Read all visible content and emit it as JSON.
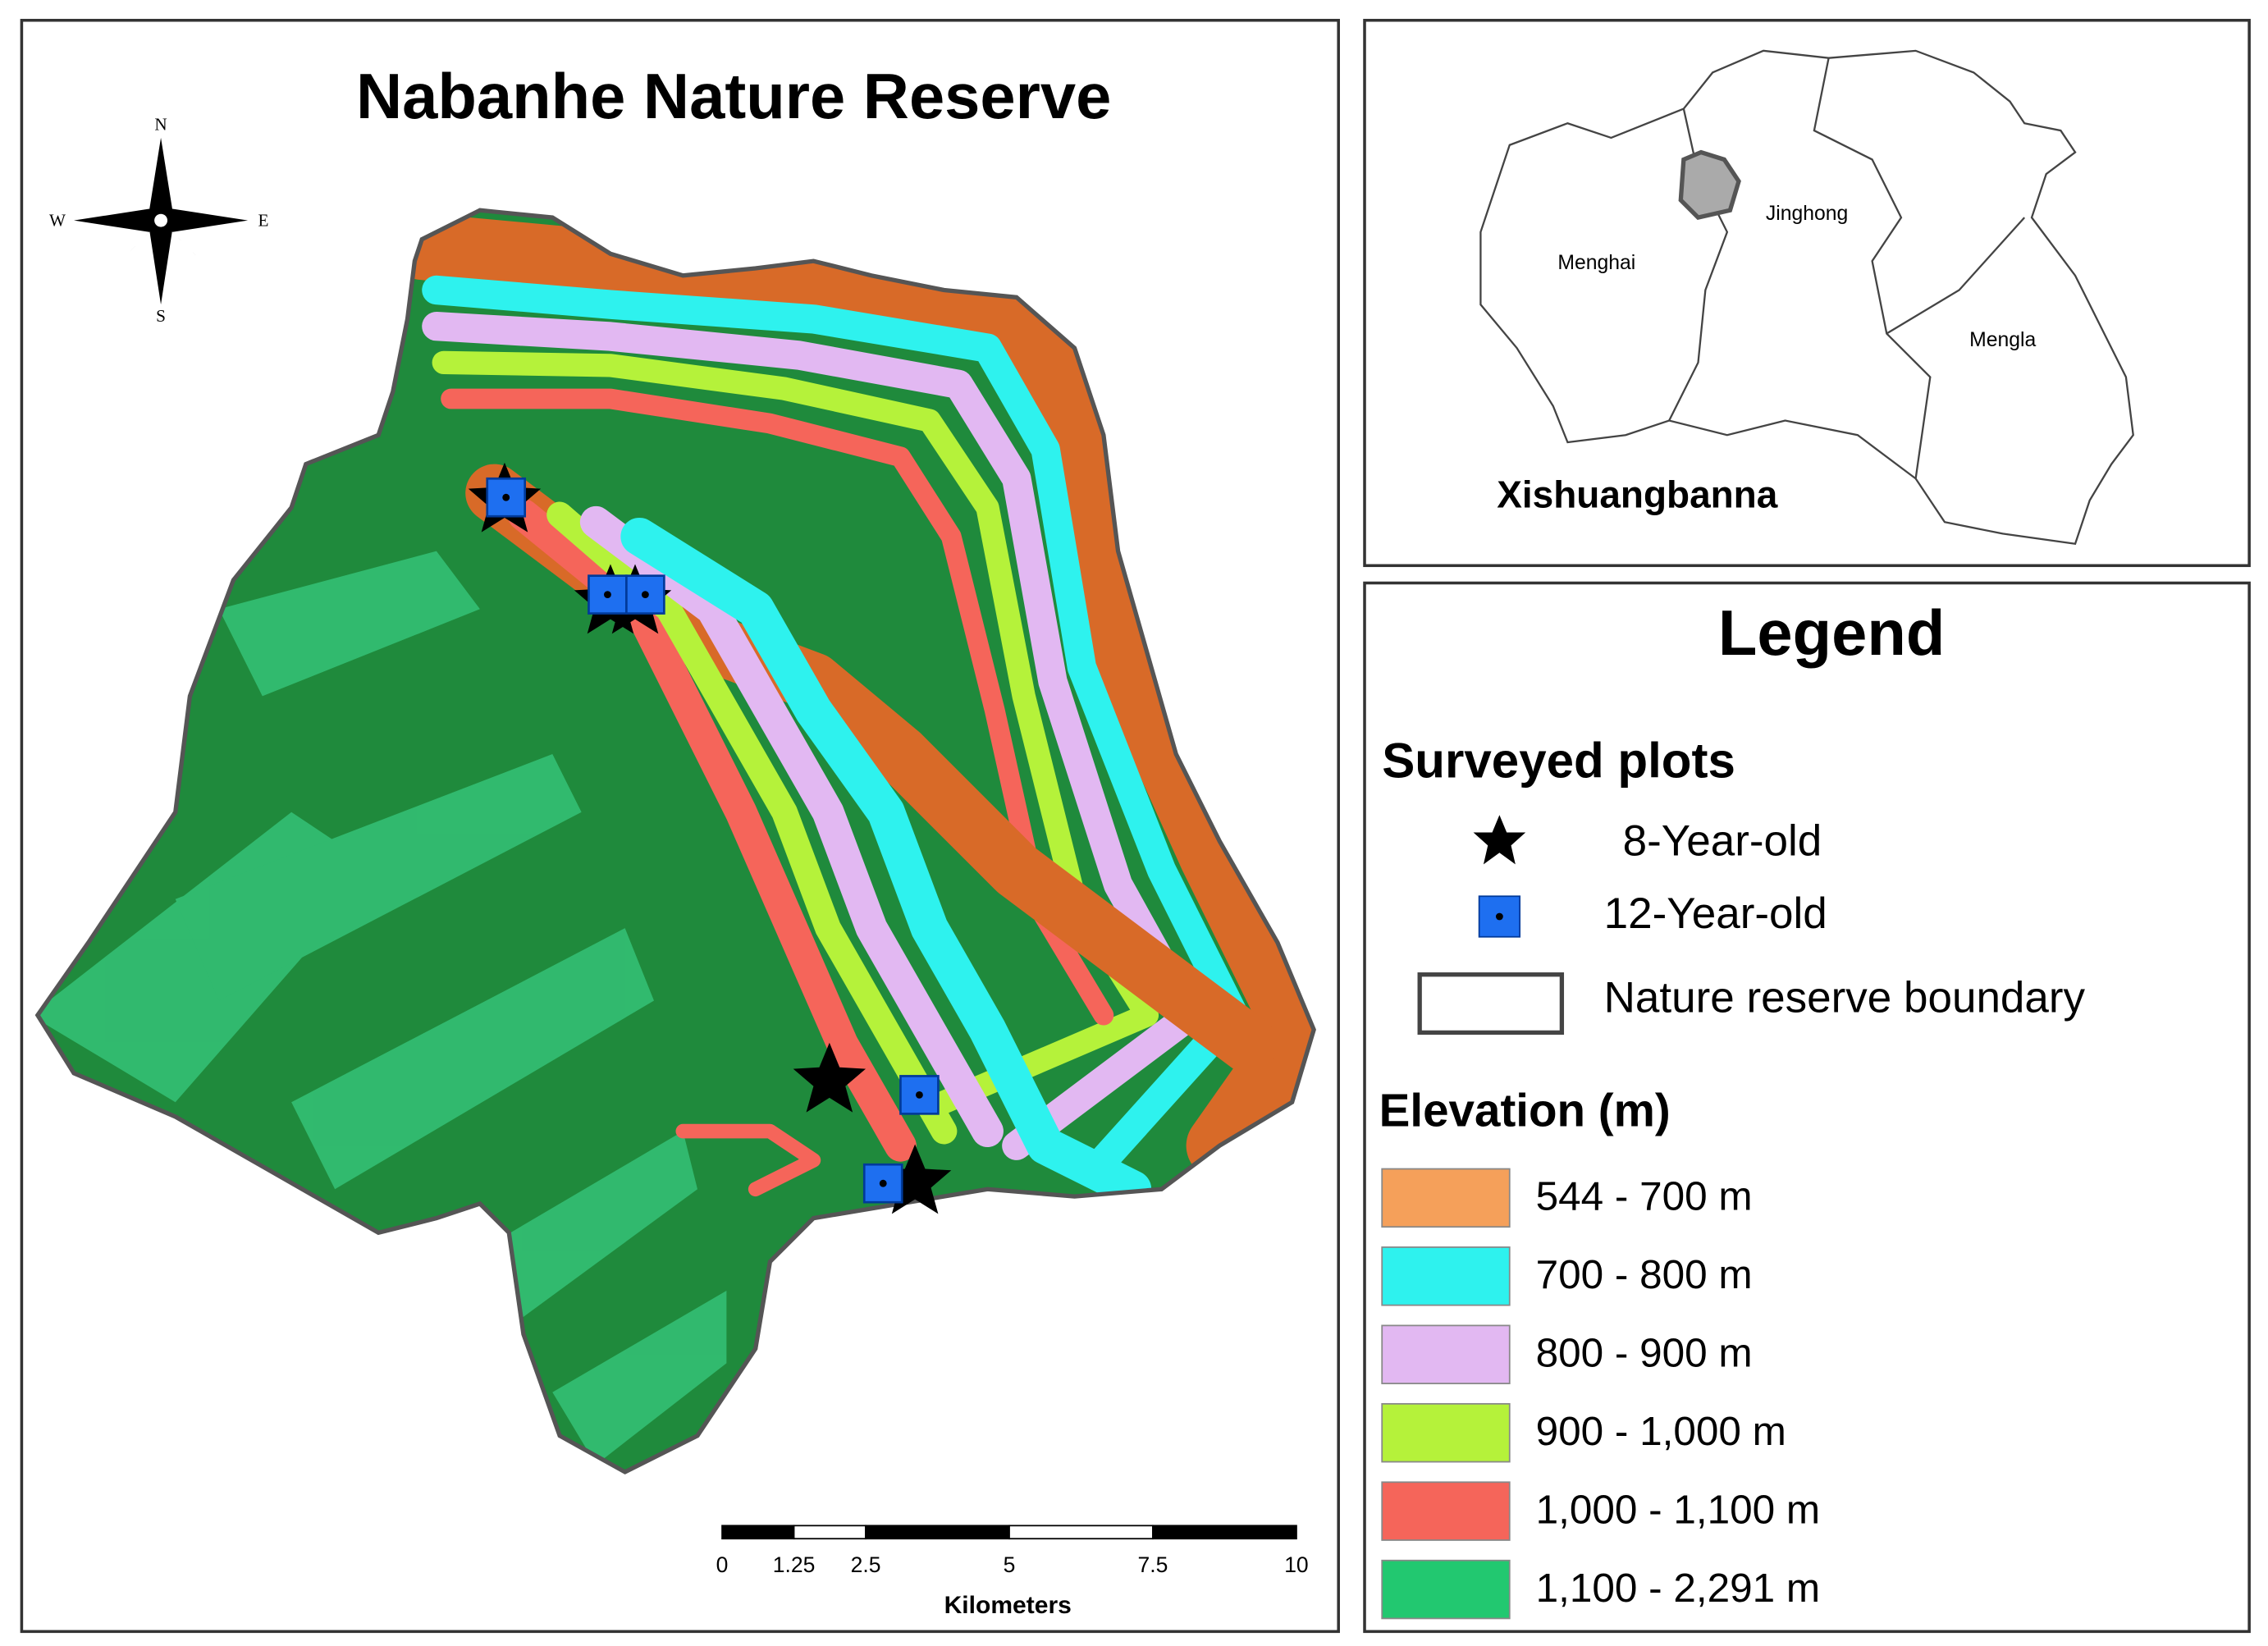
{
  "title": "Nabanhe Nature Reserve",
  "compass": {
    "north": "N",
    "south": "S",
    "east": "E",
    "west": "W"
  },
  "inset": {
    "region": "Xishuangbanna",
    "counties": [
      "Menghai",
      "Jinghong",
      "Mengla"
    ]
  },
  "legend": {
    "title": "Legend",
    "plots_title": "Surveyed plots",
    "plots": [
      "8-Year-old",
      "12-Year-old"
    ],
    "boundary": "Nature reserve boundary",
    "elevation_title": "Elevation (m)",
    "elevation_classes": [
      {
        "label": "544 - 700 m",
        "color": "#f5a05a"
      },
      {
        "label": "700 - 800 m",
        "color": "#2ef2ee"
      },
      {
        "label": "800 - 900 m",
        "color": "#e2b8f2"
      },
      {
        "label": "900 - 1,000 m",
        "color": "#b5f23a"
      },
      {
        "label": "1,000 - 1,100 m",
        "color": "#f5655a"
      },
      {
        "label": "1,100 - 2,291 m",
        "color": "#22c870"
      }
    ]
  },
  "scale_bar": {
    "ticks": [
      0,
      1.25,
      2.5,
      5,
      7.5,
      10
    ],
    "unit": "Kilometers"
  }
}
